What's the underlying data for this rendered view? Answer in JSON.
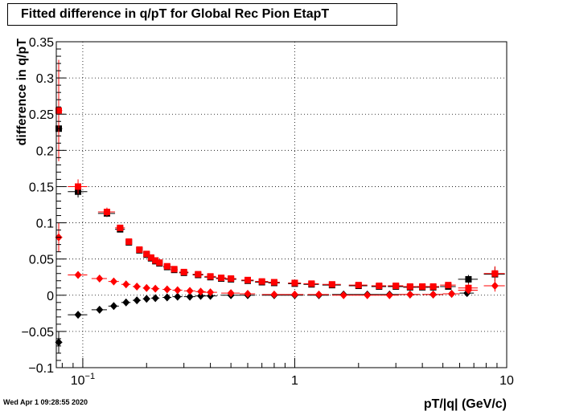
{
  "footer": {
    "timestamp": "Wed Apr  1 09:28:55 2020"
  },
  "colors": {
    "black": "#000000",
    "red": "#ff0000",
    "grid": "#000000"
  },
  "chart_data": {
    "type": "scatter",
    "title": "Fitted difference in q/pT for Global Rec Pion EtapT",
    "xlabel": "pT/|q| (GeV/c)",
    "ylabel": "difference in q/pT",
    "xscale": "log",
    "xlim": [
      0.075,
      10
    ],
    "ylim": [
      -0.1,
      0.35
    ],
    "grid": true,
    "x_ticks": [
      "10^-1",
      "1",
      "10"
    ],
    "y_ticks": [
      "-0.1",
      "-0.05",
      "0",
      "0.05",
      "0.1",
      "0.15",
      "0.2",
      "0.25",
      "0.3",
      "0.35"
    ],
    "series": [
      {
        "marker": "square",
        "color": "#000000",
        "x": [
          0.077,
          0.095,
          0.13,
          0.15,
          0.165,
          0.185,
          0.2,
          0.21,
          0.22,
          0.23,
          0.25,
          0.27,
          0.3,
          0.35,
          0.4,
          0.45,
          0.5,
          0.6,
          0.7,
          0.8,
          1.0,
          1.2,
          1.5,
          2.0,
          2.5,
          3.0,
          3.5,
          4.0,
          4.5,
          5.3,
          6.6,
          8.8
        ],
        "y": [
          0.23,
          0.143,
          0.113,
          0.091,
          0.073,
          0.062,
          0.056,
          0.051,
          0.047,
          0.044,
          0.039,
          0.035,
          0.031,
          0.028,
          0.025,
          0.023,
          0.022,
          0.02,
          0.018,
          0.017,
          0.016,
          0.015,
          0.014,
          0.013,
          0.012,
          0.012,
          0.011,
          0.011,
          0.011,
          0.012,
          0.022,
          0.029
        ],
        "xerr": [
          0.003,
          0.01,
          0.012,
          0.008,
          0.005,
          0.005,
          0.005,
          0.005,
          0.005,
          0.005,
          0.01,
          0.01,
          0.015,
          0.02,
          0.025,
          0.025,
          0.03,
          0.04,
          0.05,
          0.05,
          0.07,
          0.1,
          0.15,
          0.2,
          0.2,
          0.25,
          0.25,
          0.25,
          0.3,
          0.45,
          0.7,
          1.0
        ],
        "yerr": [
          0.02,
          0.008,
          0.005,
          0.004,
          0.002,
          0.002,
          0.002,
          0.001,
          0.001,
          0.001,
          0.001,
          0.001,
          0.001,
          0.001,
          0.001,
          0.001,
          0.001,
          0.001,
          0.001,
          0.001,
          0.001,
          0.001,
          0.001,
          0.001,
          0.001,
          0.001,
          0.001,
          0.002,
          0.002,
          0.003,
          0.006,
          0.01
        ]
      },
      {
        "marker": "square",
        "color": "#ff0000",
        "x": [
          0.077,
          0.095,
          0.13,
          0.15,
          0.165,
          0.185,
          0.2,
          0.21,
          0.22,
          0.23,
          0.25,
          0.27,
          0.3,
          0.35,
          0.4,
          0.45,
          0.5,
          0.6,
          0.7,
          0.8,
          1.0,
          1.2,
          1.5,
          2.0,
          2.5,
          3.0,
          3.5,
          4.0,
          4.5,
          5.3,
          6.6,
          8.8
        ],
        "y": [
          0.255,
          0.15,
          0.115,
          0.093,
          0.074,
          0.063,
          0.057,
          0.052,
          0.048,
          0.045,
          0.04,
          0.036,
          0.032,
          0.029,
          0.026,
          0.024,
          0.023,
          0.021,
          0.019,
          0.018,
          0.017,
          0.016,
          0.015,
          0.014,
          0.013,
          0.013,
          0.012,
          0.012,
          0.012,
          0.014,
          0.01,
          0.03
        ],
        "xerr": [
          0.003,
          0.01,
          0.012,
          0.008,
          0.005,
          0.005,
          0.005,
          0.005,
          0.005,
          0.005,
          0.01,
          0.01,
          0.015,
          0.02,
          0.025,
          0.025,
          0.03,
          0.04,
          0.05,
          0.05,
          0.07,
          0.1,
          0.15,
          0.2,
          0.2,
          0.25,
          0.25,
          0.25,
          0.3,
          0.45,
          0.7,
          1.0
        ],
        "yerr": [
          0.07,
          0.01,
          0.006,
          0.004,
          0.002,
          0.002,
          0.002,
          0.001,
          0.001,
          0.001,
          0.001,
          0.001,
          0.001,
          0.001,
          0.001,
          0.001,
          0.001,
          0.001,
          0.001,
          0.001,
          0.001,
          0.001,
          0.001,
          0.001,
          0.001,
          0.001,
          0.001,
          0.002,
          0.002,
          0.003,
          0.006,
          0.01
        ]
      },
      {
        "marker": "diamond",
        "color": "#000000",
        "x": [
          0.077,
          0.095,
          0.12,
          0.14,
          0.16,
          0.18,
          0.2,
          0.22,
          0.25,
          0.28,
          0.32,
          0.36,
          0.4,
          0.5,
          0.6,
          0.8,
          1.0,
          1.3,
          1.7,
          2.2,
          2.8,
          3.5,
          4.5,
          5.5,
          6.5
        ],
        "y": [
          -0.065,
          -0.027,
          -0.02,
          -0.015,
          -0.01,
          -0.007,
          -0.005,
          -0.004,
          -0.003,
          -0.002,
          -0.002,
          -0.001,
          -0.001,
          0.0,
          0.0,
          0.0,
          0.0,
          0.0,
          0.001,
          0.001,
          0.001,
          0.001,
          0.001,
          0.002,
          0.003
        ],
        "xerr": [
          0.003,
          0.01,
          0.01,
          0.008,
          0.008,
          0.008,
          0.008,
          0.01,
          0.012,
          0.015,
          0.02,
          0.02,
          0.03,
          0.05,
          0.05,
          0.1,
          0.1,
          0.15,
          0.2,
          0.3,
          0.3,
          0.4,
          0.5,
          0.5,
          0.5
        ],
        "yerr": [
          0.015,
          0.003,
          0.002,
          0.001,
          0.001,
          0.001,
          0.001,
          0.001,
          0.001,
          0.001,
          0.001,
          0.001,
          0.001,
          0.001,
          0.001,
          0.001,
          0.001,
          0.001,
          0.001,
          0.001,
          0.001,
          0.001,
          0.002,
          0.002,
          0.003
        ]
      },
      {
        "marker": "diamond",
        "color": "#ff0000",
        "x": [
          0.077,
          0.095,
          0.12,
          0.14,
          0.16,
          0.18,
          0.2,
          0.22,
          0.25,
          0.28,
          0.32,
          0.36,
          0.4,
          0.5,
          0.6,
          0.8,
          1.0,
          1.3,
          1.7,
          2.2,
          2.8,
          3.5,
          4.5,
          5.5,
          6.6,
          8.8
        ],
        "y": [
          0.08,
          0.028,
          0.023,
          0.019,
          0.015,
          0.012,
          0.01,
          0.009,
          0.008,
          0.007,
          0.006,
          0.005,
          0.004,
          0.003,
          0.002,
          0.001,
          0.001,
          0.001,
          0.0,
          0.0,
          0.0,
          0.001,
          0.001,
          0.002,
          0.007,
          0.013
        ],
        "xerr": [
          0.003,
          0.01,
          0.01,
          0.008,
          0.008,
          0.008,
          0.008,
          0.01,
          0.012,
          0.015,
          0.02,
          0.02,
          0.03,
          0.05,
          0.05,
          0.1,
          0.1,
          0.15,
          0.2,
          0.3,
          0.3,
          0.4,
          0.5,
          0.5,
          0.7,
          1.0
        ],
        "yerr": [
          0.02,
          0.004,
          0.002,
          0.001,
          0.001,
          0.001,
          0.001,
          0.001,
          0.001,
          0.001,
          0.001,
          0.001,
          0.001,
          0.001,
          0.001,
          0.001,
          0.001,
          0.001,
          0.001,
          0.001,
          0.001,
          0.001,
          0.002,
          0.002,
          0.004,
          0.008
        ]
      }
    ]
  }
}
